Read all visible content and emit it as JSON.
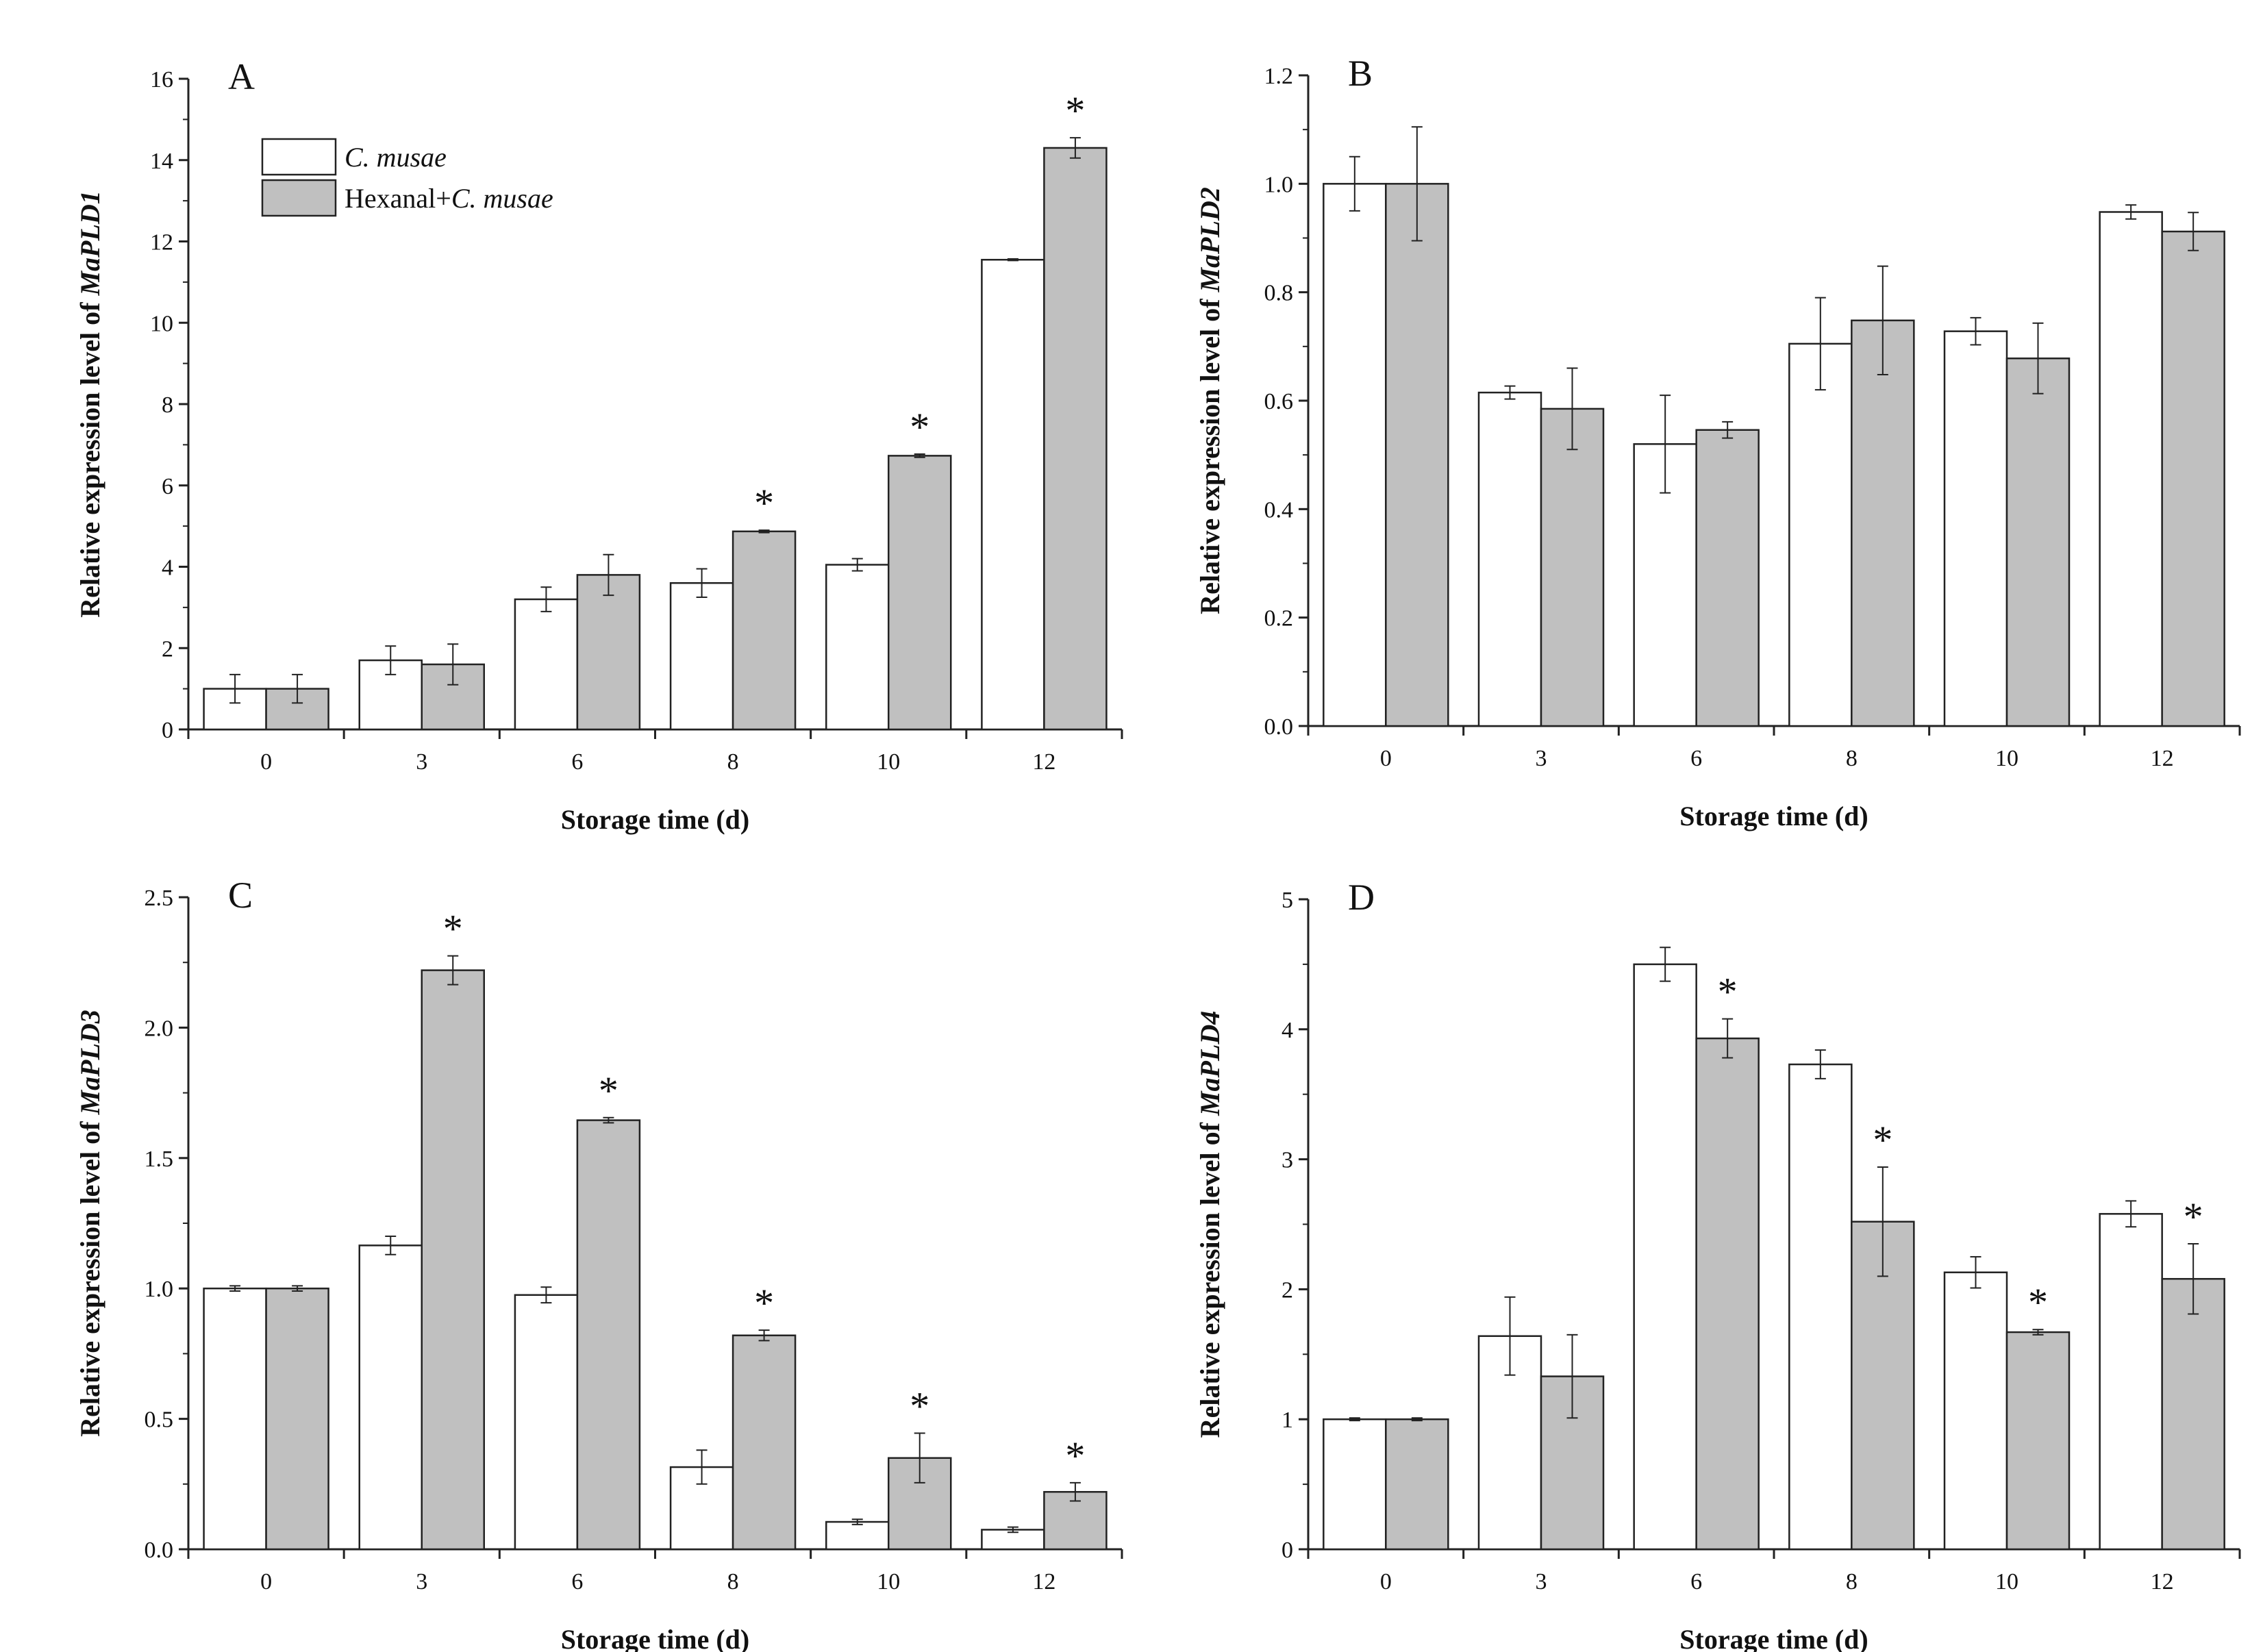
{
  "legend": {
    "series1_italic": "C. musae",
    "series2_prefix": "Hexanal+",
    "series2_italic": "C. musae"
  },
  "colors": {
    "bar1": "#ffffff",
    "bar2": "#c0c0c0",
    "stroke": "#222222"
  },
  "chart_data": [
    {
      "panel": "A",
      "type": "bar",
      "title": "",
      "xlabel": "Storage time (d)",
      "ylabel_prefix": "Relative expression level of ",
      "ylabel_gene": "MaPLD1",
      "categories": [
        "0",
        "3",
        "6",
        "8",
        "10",
        "12"
      ],
      "ylim": [
        0,
        16
      ],
      "y_ticks": [
        "0",
        "2",
        "4",
        "6",
        "8",
        "10",
        "12",
        "14",
        "16"
      ],
      "series": [
        {
          "name": "C. musae",
          "values": [
            1.0,
            1.7,
            3.2,
            3.6,
            4.05,
            11.55
          ],
          "errors": [
            0.35,
            0.35,
            0.3,
            0.35,
            0.15,
            0.02
          ]
        },
        {
          "name": "Hexanal+C. musae",
          "values": [
            1.0,
            1.6,
            3.8,
            4.87,
            6.73,
            14.3
          ],
          "errors": [
            0.35,
            0.5,
            0.5,
            0.03,
            0.04,
            0.25
          ]
        }
      ],
      "significance": [
        false,
        false,
        false,
        true,
        true,
        true
      ],
      "star": "*"
    },
    {
      "panel": "B",
      "type": "bar",
      "title": "",
      "xlabel": "Storage time (d)",
      "ylabel_prefix": "Relative expression level of ",
      "ylabel_gene": "MaPLD2",
      "categories": [
        "0",
        "3",
        "6",
        "8",
        "10",
        "12"
      ],
      "ylim": [
        0,
        1.2
      ],
      "y_ticks": [
        "0.0",
        "0.2",
        "0.4",
        "0.6",
        "0.8",
        "1.0",
        "1.2"
      ],
      "series": [
        {
          "name": "C. musae",
          "values": [
            1.0,
            0.615,
            0.52,
            0.705,
            0.728,
            0.948
          ],
          "errors": [
            0.05,
            0.012,
            0.09,
            0.085,
            0.025,
            0.013
          ]
        },
        {
          "name": "Hexanal+C. musae",
          "values": [
            1.0,
            0.585,
            0.546,
            0.748,
            0.678,
            0.912
          ],
          "errors": [
            0.105,
            0.075,
            0.015,
            0.1,
            0.065,
            0.035
          ]
        }
      ],
      "significance": [
        false,
        false,
        false,
        false,
        false,
        false
      ],
      "star": "*"
    },
    {
      "panel": "C",
      "type": "bar",
      "title": "",
      "xlabel": "Storage time (d)",
      "ylabel_prefix": "Relative expression level of ",
      "ylabel_gene": "MaPLD3",
      "categories": [
        "0",
        "3",
        "6",
        "8",
        "10",
        "12"
      ],
      "ylim": [
        0,
        2.5
      ],
      "y_ticks": [
        "0.0",
        "0.5",
        "1.0",
        "1.5",
        "2.0",
        "2.5"
      ],
      "series": [
        {
          "name": "C. musae",
          "values": [
            1.0,
            1.165,
            0.975,
            0.315,
            0.105,
            0.075
          ],
          "errors": [
            0.01,
            0.035,
            0.03,
            0.065,
            0.01,
            0.01
          ]
        },
        {
          "name": "Hexanal+C. musae",
          "values": [
            1.0,
            2.22,
            1.645,
            0.82,
            0.35,
            0.22
          ],
          "errors": [
            0.01,
            0.055,
            0.01,
            0.02,
            0.095,
            0.035
          ]
        }
      ],
      "significance": [
        false,
        true,
        true,
        true,
        true,
        true
      ],
      "star": "*"
    },
    {
      "panel": "D",
      "type": "bar",
      "title": "",
      "xlabel": "Storage time (d)",
      "ylabel_prefix": "Relative expression level of ",
      "ylabel_gene": "MaPLD4",
      "categories": [
        "0",
        "3",
        "6",
        "8",
        "10",
        "12"
      ],
      "ylim": [
        0,
        5
      ],
      "y_ticks": [
        "0",
        "1",
        "2",
        "3",
        "4",
        "5"
      ],
      "series": [
        {
          "name": "C. musae",
          "values": [
            1.0,
            1.64,
            4.5,
            3.73,
            2.13,
            2.58
          ],
          "errors": [
            0.01,
            0.3,
            0.13,
            0.11,
            0.12,
            0.1
          ]
        },
        {
          "name": "Hexanal+C. musae",
          "values": [
            1.0,
            1.33,
            3.93,
            2.52,
            1.67,
            2.08
          ],
          "errors": [
            0.01,
            0.32,
            0.15,
            0.42,
            0.02,
            0.27
          ]
        }
      ],
      "significance": [
        false,
        false,
        true,
        true,
        true,
        true
      ],
      "star": "*"
    }
  ]
}
